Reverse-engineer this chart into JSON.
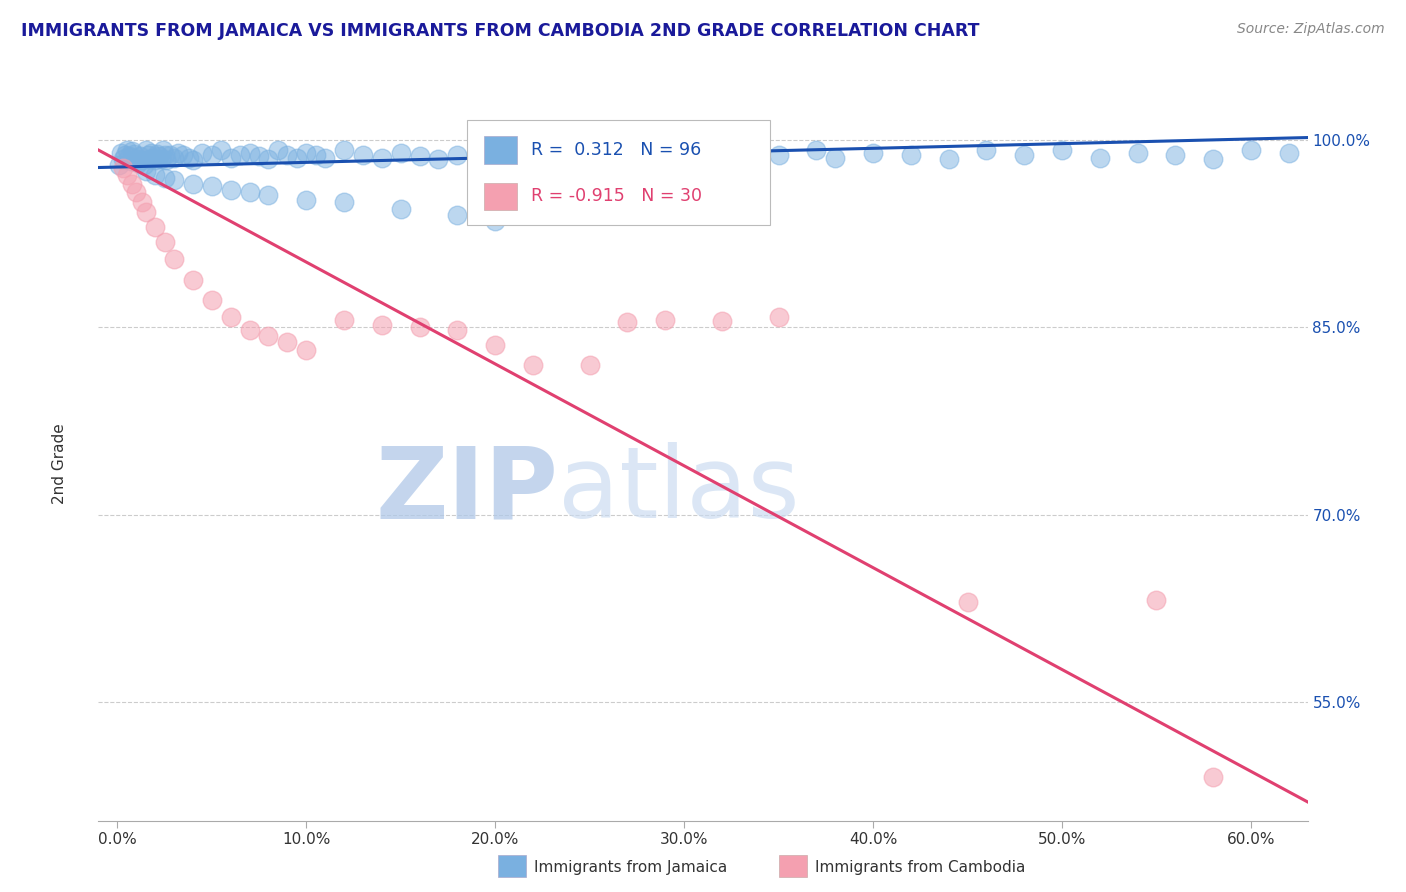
{
  "title": "IMMIGRANTS FROM JAMAICA VS IMMIGRANTS FROM CAMBODIA 2ND GRADE CORRELATION CHART",
  "source_text": "Source: ZipAtlas.com",
  "ylabel": "2nd Grade",
  "xlabel_ticks": [
    "0.0%",
    "10.0%",
    "20.0%",
    "30.0%",
    "40.0%",
    "50.0%",
    "60.0%"
  ],
  "xlabel_vals": [
    0.0,
    10.0,
    20.0,
    30.0,
    40.0,
    50.0,
    60.0
  ],
  "ylabel_ticks": [
    "100.0%",
    "85.0%",
    "70.0%",
    "55.0%"
  ],
  "ylabel_vals": [
    1.0,
    0.85,
    0.7,
    0.55
  ],
  "ymin": 0.455,
  "ymax": 1.055,
  "xmin": -1.0,
  "xmax": 63,
  "jamaica_R": 0.312,
  "jamaica_N": 96,
  "cambodia_R": -0.915,
  "cambodia_N": 30,
  "jamaica_color": "#7ab0e0",
  "cambodia_color": "#f4a0b0",
  "jamaica_line_color": "#1a50b0",
  "cambodia_line_color": "#e04070",
  "watermark_color": "#c8d8f0",
  "watermark_text": "ZIPatlas",
  "title_color": "#1a1a9a",
  "source_color": "#888888",
  "grid_color": "#cccccc",
  "background_color": "#ffffff",
  "jamaica_x": [
    0.1,
    0.2,
    0.3,
    0.4,
    0.5,
    0.6,
    0.7,
    0.8,
    0.9,
    1.0,
    1.1,
    1.2,
    1.3,
    1.4,
    1.5,
    1.6,
    1.7,
    1.8,
    1.9,
    2.0,
    2.1,
    2.2,
    2.3,
    2.4,
    2.5,
    2.6,
    2.8,
    3.0,
    3.2,
    3.5,
    3.8,
    4.0,
    4.5,
    5.0,
    5.5,
    6.0,
    6.5,
    7.0,
    7.5,
    8.0,
    8.5,
    9.0,
    9.5,
    10.0,
    10.5,
    11.0,
    12.0,
    13.0,
    14.0,
    15.0,
    16.0,
    17.0,
    18.0,
    19.0,
    20.0,
    21.0,
    22.0,
    23.0,
    24.0,
    25.0,
    26.0,
    27.0,
    28.0,
    29.0,
    30.0,
    32.0,
    34.0,
    35.0,
    37.0,
    38.0,
    40.0,
    42.0,
    44.0,
    46.0,
    48.0,
    50.0,
    52.0,
    54.0,
    56.0,
    58.0,
    60.0,
    62.0,
    1.5,
    2.0,
    2.5,
    3.0,
    4.0,
    5.0,
    6.0,
    7.0,
    8.0,
    10.0,
    12.0,
    15.0,
    18.0,
    20.0
  ],
  "jamaica_y": [
    0.98,
    0.99,
    0.985,
    0.988,
    0.992,
    0.987,
    0.983,
    0.991,
    0.989,
    0.985,
    0.982,
    0.987,
    0.984,
    0.98,
    0.992,
    0.988,
    0.985,
    0.99,
    0.986,
    0.984,
    0.989,
    0.987,
    0.985,
    0.992,
    0.988,
    0.984,
    0.988,
    0.986,
    0.99,
    0.988,
    0.986,
    0.984,
    0.99,
    0.988,
    0.992,
    0.986,
    0.988,
    0.99,
    0.987,
    0.985,
    0.992,
    0.988,
    0.986,
    0.99,
    0.988,
    0.986,
    0.992,
    0.988,
    0.986,
    0.99,
    0.987,
    0.985,
    0.988,
    0.99,
    0.987,
    0.985,
    0.988,
    0.992,
    0.986,
    0.99,
    0.988,
    0.985,
    0.992,
    0.988,
    0.986,
    0.99,
    0.985,
    0.988,
    0.992,
    0.986,
    0.99,
    0.988,
    0.985,
    0.992,
    0.988,
    0.992,
    0.986,
    0.99,
    0.988,
    0.985,
    0.992,
    0.99,
    0.975,
    0.972,
    0.97,
    0.968,
    0.965,
    0.963,
    0.96,
    0.958,
    0.956,
    0.952,
    0.95,
    0.945,
    0.94,
    0.935
  ],
  "cambodia_x": [
    0.3,
    0.5,
    0.8,
    1.0,
    1.3,
    1.5,
    2.0,
    2.5,
    3.0,
    4.0,
    5.0,
    6.0,
    7.0,
    8.0,
    9.0,
    10.0,
    12.0,
    14.0,
    16.0,
    18.0,
    20.0,
    22.0,
    25.0,
    27.0,
    29.0,
    32.0,
    35.0,
    45.0,
    55.0,
    58.0
  ],
  "cambodia_y": [
    0.978,
    0.972,
    0.965,
    0.958,
    0.95,
    0.942,
    0.93,
    0.918,
    0.905,
    0.888,
    0.872,
    0.858,
    0.848,
    0.843,
    0.838,
    0.832,
    0.856,
    0.852,
    0.85,
    0.848,
    0.836,
    0.82,
    0.82,
    0.854,
    0.856,
    0.855,
    0.858,
    0.63,
    0.632,
    0.49
  ],
  "cambodia_line_start_y": 0.992,
  "cambodia_line_end_y": 0.47,
  "jamaica_line_start_y": 0.978,
  "jamaica_line_end_y": 1.002
}
